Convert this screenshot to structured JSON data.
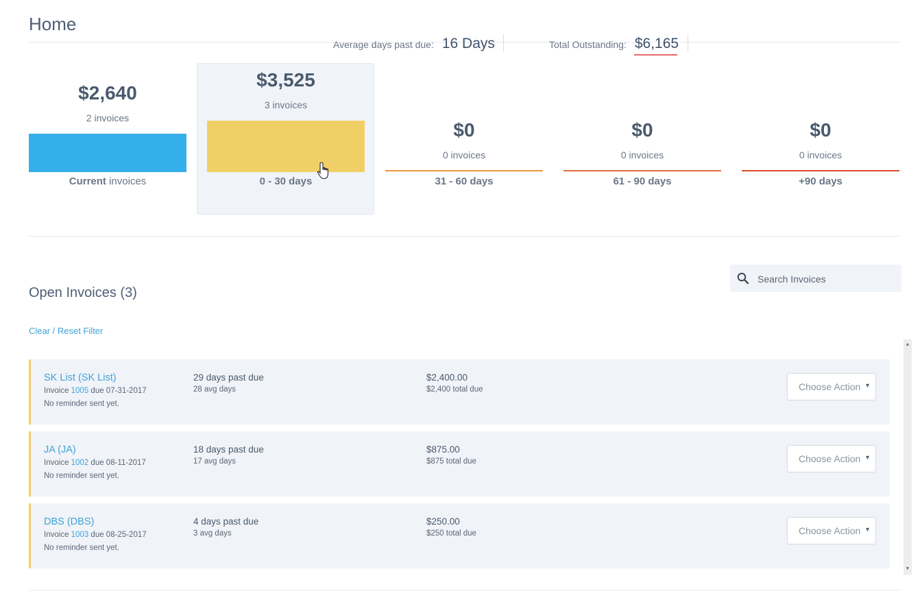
{
  "page": {
    "title": "Home"
  },
  "stats": {
    "avg_label": "Average days past due:",
    "avg_value": "16 Days",
    "total_label": "Total Outstanding:",
    "total_value": "$6,165"
  },
  "buckets": [
    {
      "amount": "$2,640",
      "count": "2 invoices",
      "label_bold": "Current",
      "label_rest": " invoices",
      "fill": 1.0,
      "color": "#35afe9"
    },
    {
      "amount": "$3,525",
      "count": "3 invoices",
      "label_bold": "0 - 30 days",
      "label_rest": "",
      "fill": 1.0,
      "color": "#f1cf67"
    },
    {
      "amount": "$0",
      "count": "0 invoices",
      "label_bold": "31 - 60 days",
      "label_rest": "",
      "fill": 0,
      "color": "#e8973f"
    },
    {
      "amount": "$0",
      "count": "0 invoices",
      "label_bold": "61 - 90 days",
      "label_rest": "",
      "fill": 0,
      "color": "#e56a3a"
    },
    {
      "amount": "$0",
      "count": "0 invoices",
      "label_bold": "+90 days",
      "label_rest": "",
      "fill": 0,
      "color": "#d9482a"
    }
  ],
  "open_invoices": {
    "title": "Open Invoices (3)",
    "reset_label": "Clear / Reset Filter",
    "search_placeholder": "Search Invoices"
  },
  "invoices": [
    {
      "customer": "SK List (SK List)",
      "inv_prefix": "Invoice ",
      "inv_number": "1005",
      "inv_due": " due 07-31-2017",
      "reminder": "No reminder sent yet.",
      "past_due": "29 days past due",
      "avg": "28 avg days",
      "amount": "$2,400.00",
      "total_due": "$2,400 total due",
      "action": "Choose Action"
    },
    {
      "customer": "JA (JA)",
      "inv_prefix": "Invoice ",
      "inv_number": "1002",
      "inv_due": " due 08-11-2017",
      "reminder": "No reminder sent yet.",
      "past_due": "18 days past due",
      "avg": "17 avg days",
      "amount": "$875.00",
      "total_due": "$875 total due",
      "action": "Choose Action"
    },
    {
      "customer": "DBS (DBS)",
      "inv_prefix": "Invoice ",
      "inv_number": "1003",
      "inv_due": " due 08-25-2017",
      "reminder": "No reminder sent yet.",
      "past_due": "4 days past due",
      "avg": "3 avg days",
      "amount": "$250.00",
      "total_due": "$250 total due",
      "action": "Choose Action"
    }
  ],
  "icons": {
    "search": "search-icon",
    "cursor": "hand-pointer-icon",
    "caret": "caret-down-icon"
  }
}
